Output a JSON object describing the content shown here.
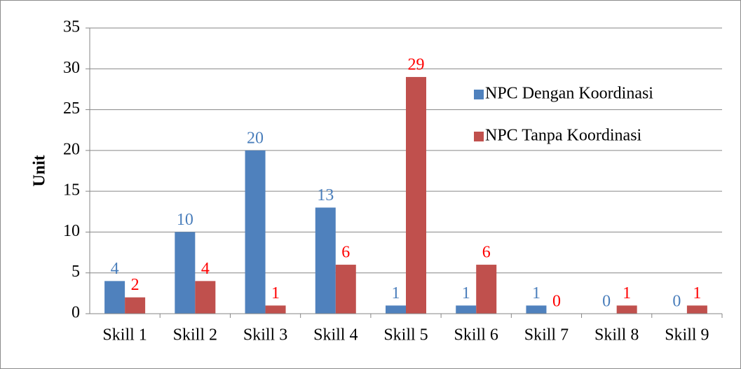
{
  "chart_data": {
    "type": "bar",
    "y_label": "Unit",
    "categories": [
      "Skill 1",
      "Skill 2",
      "Skill 3",
      "Skill 4",
      "Skill 5",
      "Skill 6",
      "Skill 7",
      "Skill 8",
      "Skill 9"
    ],
    "series": [
      {
        "name": "NPC Dengan Koordinasi",
        "color": "#4f81bd",
        "label_color": "#4a7ebb",
        "values": [
          4,
          10,
          20,
          13,
          1,
          1,
          1,
          0,
          0
        ]
      },
      {
        "name": "NPC Tanpa Koordinasi",
        "color": "#c0504d",
        "label_color": "#ff0000",
        "values": [
          2,
          4,
          1,
          6,
          29,
          6,
          0,
          1,
          1
        ]
      }
    ],
    "ylim": [
      0,
      35
    ],
    "yticks": [
      0,
      5,
      10,
      15,
      20,
      25,
      30,
      35
    ],
    "grid": true,
    "legend": "right"
  }
}
